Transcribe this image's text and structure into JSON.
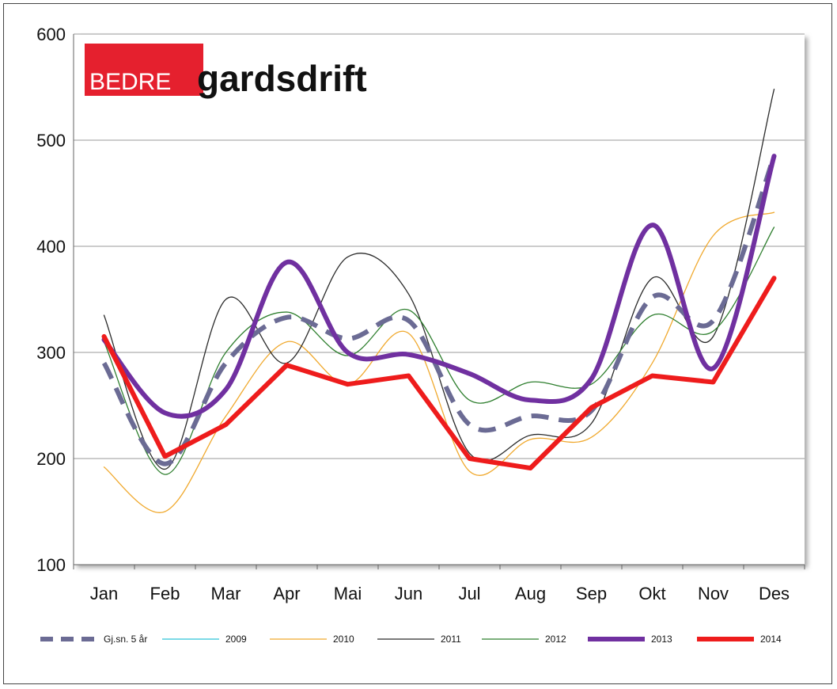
{
  "logo": {
    "brand_red": "BEDRE",
    "brand_black": "gardsdrift",
    "red": "#e5202e"
  },
  "chart_data": {
    "type": "line",
    "title": "",
    "xlabel": "",
    "ylabel": "",
    "categories": [
      "Jan",
      "Feb",
      "Mar",
      "Apr",
      "Mai",
      "Jun",
      "Jul",
      "Aug",
      "Sep",
      "Okt",
      "Nov",
      "Des"
    ],
    "ylim": [
      100,
      600
    ],
    "yticks": [
      "100",
      "200",
      "300",
      "400",
      "500",
      "600"
    ],
    "grid": true,
    "legend_position": "bottom",
    "series": [
      {
        "name": "Gj.sn. 5 år",
        "color": "#6b6b94",
        "style": "dashed-thick",
        "smooth": true,
        "values": [
          290,
          195,
          290,
          333,
          313,
          330,
          232,
          240,
          245,
          352,
          330,
          485
        ]
      },
      {
        "name": "2009",
        "color": "#2ec4d6",
        "style": "thin",
        "smooth": true,
        "values": [
          null,
          null,
          null,
          null,
          null,
          null,
          null,
          null,
          null,
          null,
          null,
          null
        ]
      },
      {
        "name": "2010",
        "color": "#f0a92e",
        "style": "thin",
        "smooth": true,
        "values": [
          192,
          150,
          240,
          310,
          270,
          318,
          188,
          218,
          220,
          290,
          410,
          432
        ]
      },
      {
        "name": "2011",
        "color": "#2b2b2b",
        "style": "thin",
        "smooth": true,
        "values": [
          335,
          190,
          350,
          290,
          390,
          355,
          205,
          222,
          233,
          370,
          315,
          548
        ]
      },
      {
        "name": "2012",
        "color": "#2f7f2f",
        "style": "thin",
        "smooth": true,
        "values": [
          310,
          185,
          300,
          338,
          297,
          340,
          255,
          272,
          270,
          335,
          320,
          418
        ]
      },
      {
        "name": "2013",
        "color": "#7030a0",
        "style": "thick",
        "smooth": true,
        "values": [
          312,
          243,
          265,
          385,
          300,
          298,
          280,
          255,
          275,
          420,
          285,
          485
        ]
      },
      {
        "name": "2014",
        "color": "#ee1c1c",
        "style": "thick",
        "smooth": false,
        "values": [
          315,
          202,
          232,
          288,
          270,
          278,
          200,
          191,
          248,
          278,
          272,
          370
        ]
      }
    ]
  }
}
